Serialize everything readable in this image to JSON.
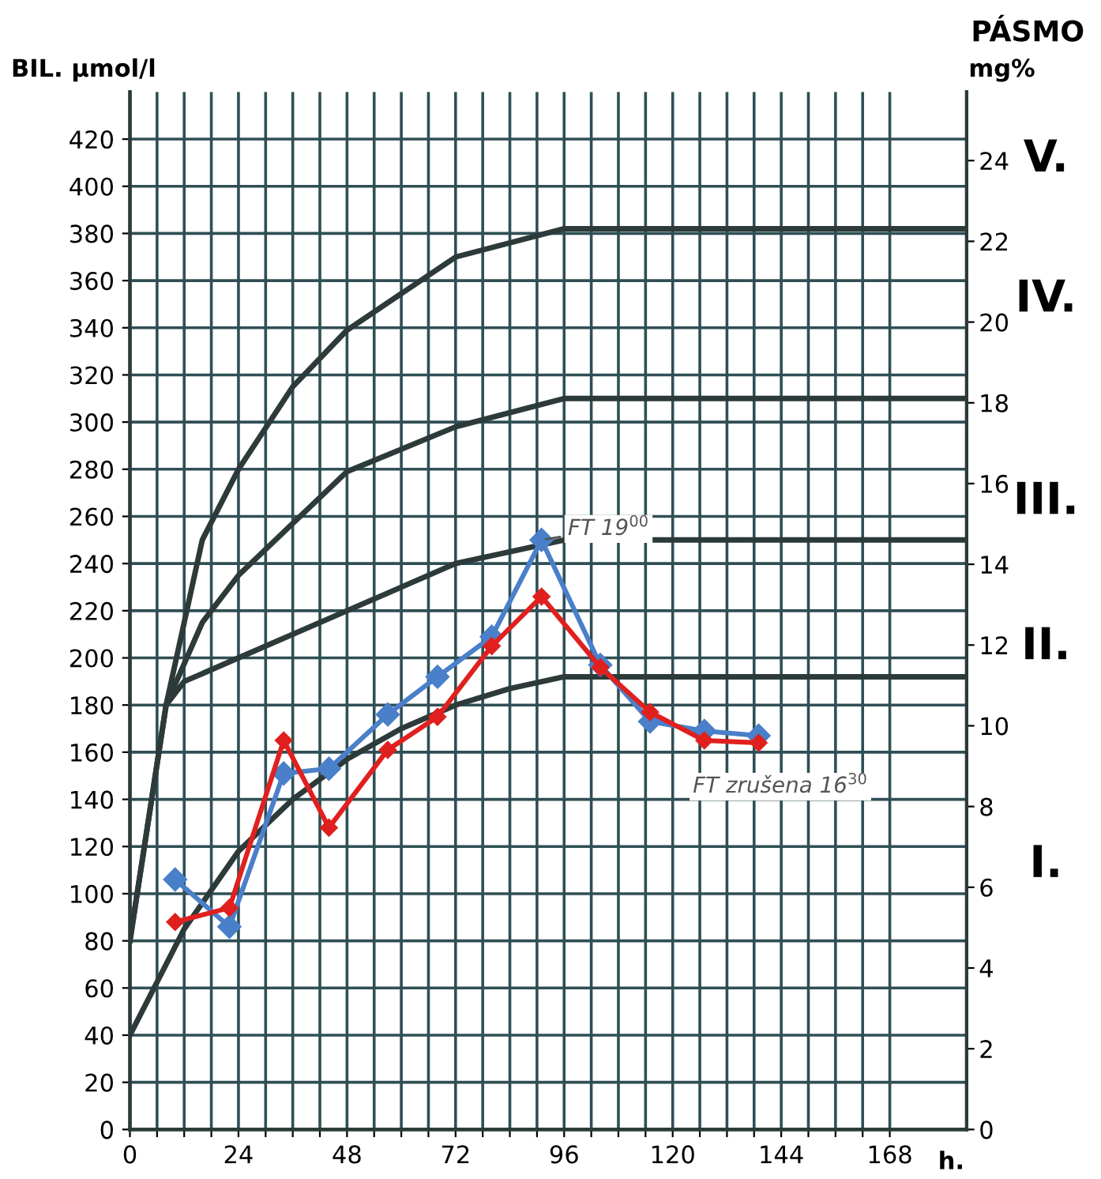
{
  "chart_data": {
    "type": "line",
    "ylabel": "BIL. µmol/l",
    "y2label": "mg%",
    "xlabel": "h.",
    "xlim": [
      0,
      185
    ],
    "ylim": [
      0,
      440
    ],
    "y2lim": [
      0,
      25.7
    ],
    "xticks": [
      0,
      {
        "value": 6,
        "label": null
      },
      {
        "value": 12,
        "label": null
      },
      {
        "value": 18,
        "label": null
      },
      24,
      {
        "value": 30,
        "label": null
      },
      {
        "value": 36,
        "label": null
      },
      {
        "value": 42,
        "label": null
      },
      48,
      {
        "value": 54,
        "label": null
      },
      {
        "value": 60,
        "label": null
      },
      {
        "value": 66,
        "label": null
      },
      72,
      {
        "value": 78,
        "label": null
      },
      {
        "value": 84,
        "label": null
      },
      {
        "value": 90,
        "label": null
      },
      96,
      {
        "value": 102,
        "label": null
      },
      {
        "value": 108,
        "label": null
      },
      {
        "value": 114,
        "label": null
      },
      120,
      {
        "value": 126,
        "label": null
      },
      {
        "value": 132,
        "label": null
      },
      {
        "value": 138,
        "label": null
      },
      144,
      {
        "value": 150,
        "label": null
      },
      {
        "value": 156,
        "label": null
      },
      {
        "value": 162,
        "label": null
      },
      168
    ],
    "yticks": [
      0,
      20,
      40,
      60,
      80,
      100,
      120,
      140,
      160,
      180,
      200,
      220,
      240,
      260,
      280,
      300,
      320,
      340,
      360,
      380,
      400,
      420
    ],
    "y2ticks": [
      0,
      2,
      4,
      6,
      8,
      10,
      12,
      14,
      16,
      18,
      20,
      22,
      24
    ],
    "grid": true,
    "marker": "diamond",
    "line_style": "solid",
    "series": [
      {
        "color": "#2d3a3a",
        "marker": "none",
        "x": [
          0,
          12,
          24,
          36,
          48,
          60,
          72,
          84,
          96,
          185
        ],
        "values": [
          40,
          85,
          118,
          140,
          157,
          170,
          180,
          187,
          192,
          192
        ]
      },
      {
        "color": "#2d3a3a",
        "marker": "none",
        "x": [
          0,
          8,
          12,
          24,
          48,
          72,
          96,
          185
        ],
        "values": [
          80,
          180,
          190,
          200,
          220,
          240,
          250,
          250
        ]
      },
      {
        "color": "#2d3a3a",
        "marker": "none",
        "x": [
          8,
          16,
          24,
          48,
          72,
          96,
          185
        ],
        "values": [
          180,
          215,
          235,
          279,
          298,
          310,
          310
        ]
      },
      {
        "color": "#2d3a3a",
        "marker": "none",
        "x": [
          0,
          8,
          16,
          24,
          36,
          48,
          72,
          96,
          185
        ],
        "values": [
          80,
          180,
          250,
          280,
          315,
          339,
          370,
          382,
          382
        ]
      },
      {
        "color": "#4a7fc9",
        "x": [
          10,
          22,
          34,
          44,
          57,
          68,
          80,
          91,
          104,
          115,
          127,
          139
        ],
        "values": [
          106,
          86,
          151,
          153,
          176,
          192,
          209,
          250,
          197,
          173,
          169,
          167
        ]
      },
      {
        "color": "#e0201e",
        "x": [
          10,
          22,
          34,
          44,
          57,
          68,
          80,
          91,
          104,
          115,
          127,
          139
        ],
        "values": [
          88,
          94,
          165,
          128,
          161,
          175,
          205,
          226,
          196,
          177,
          165,
          164
        ]
      }
    ],
    "annotations": [
      {
        "text": "FT 19$^{00}$",
        "x": 91,
        "y": 250
      },
      {
        "text": "FT zrušena 16$^{30}$",
        "x": 139,
        "y": 164
      },
      "PÁSMO",
      "I.",
      "II.",
      "III.",
      "IV.",
      "V."
    ]
  }
}
